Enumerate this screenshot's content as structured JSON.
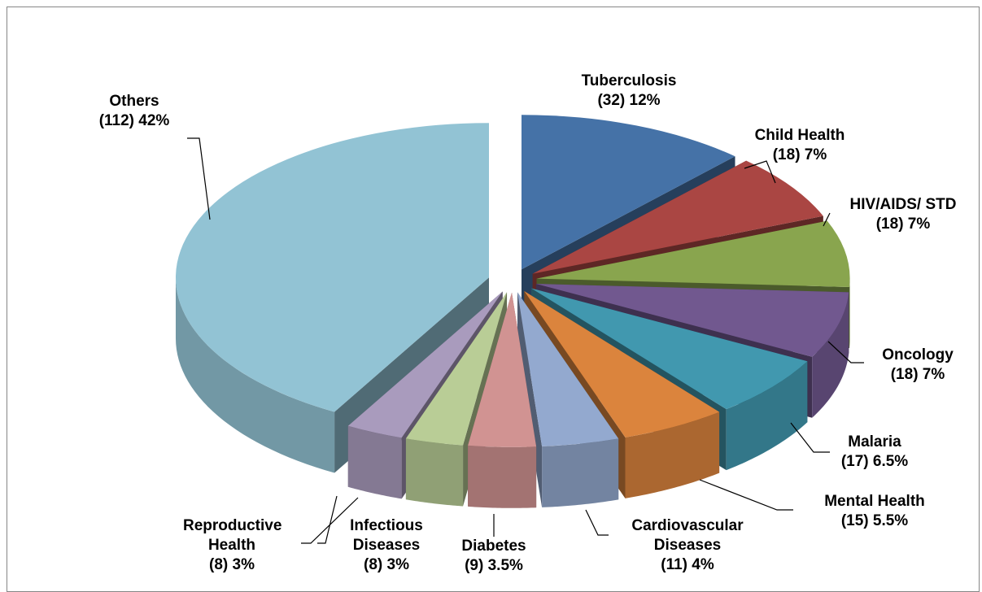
{
  "chart_data": {
    "type": "pie",
    "categories": [
      "Tuberculosis",
      "Child Health",
      "HIV/AIDS/ STD",
      "Oncology",
      "Malaria",
      "Mental Health",
      "Cardiovascular Diseases",
      "Diabetes",
      "Infectious Diseases",
      "Reproductive Health",
      "Others"
    ],
    "values": [
      12,
      7,
      7,
      7,
      6.5,
      5.5,
      4,
      3.5,
      3,
      3,
      42
    ],
    "value_labels": [
      "(32) 12%",
      "(18) 7%",
      "(18) 7%",
      "(18) 7%",
      "(17) 6.5%",
      "(15) 5.5%",
      "(11) 4%",
      "(9) 3.5%",
      "(8) 3%",
      "(8) 3%",
      "(112) 42%"
    ],
    "colors": [
      "#4572a7",
      "#aa4643",
      "#89a54e",
      "#71588f",
      "#4198af",
      "#db843d",
      "#93a9cf",
      "#d19392",
      "#b9cd96",
      "#a99bbd",
      "#92c3d4"
    ]
  }
}
